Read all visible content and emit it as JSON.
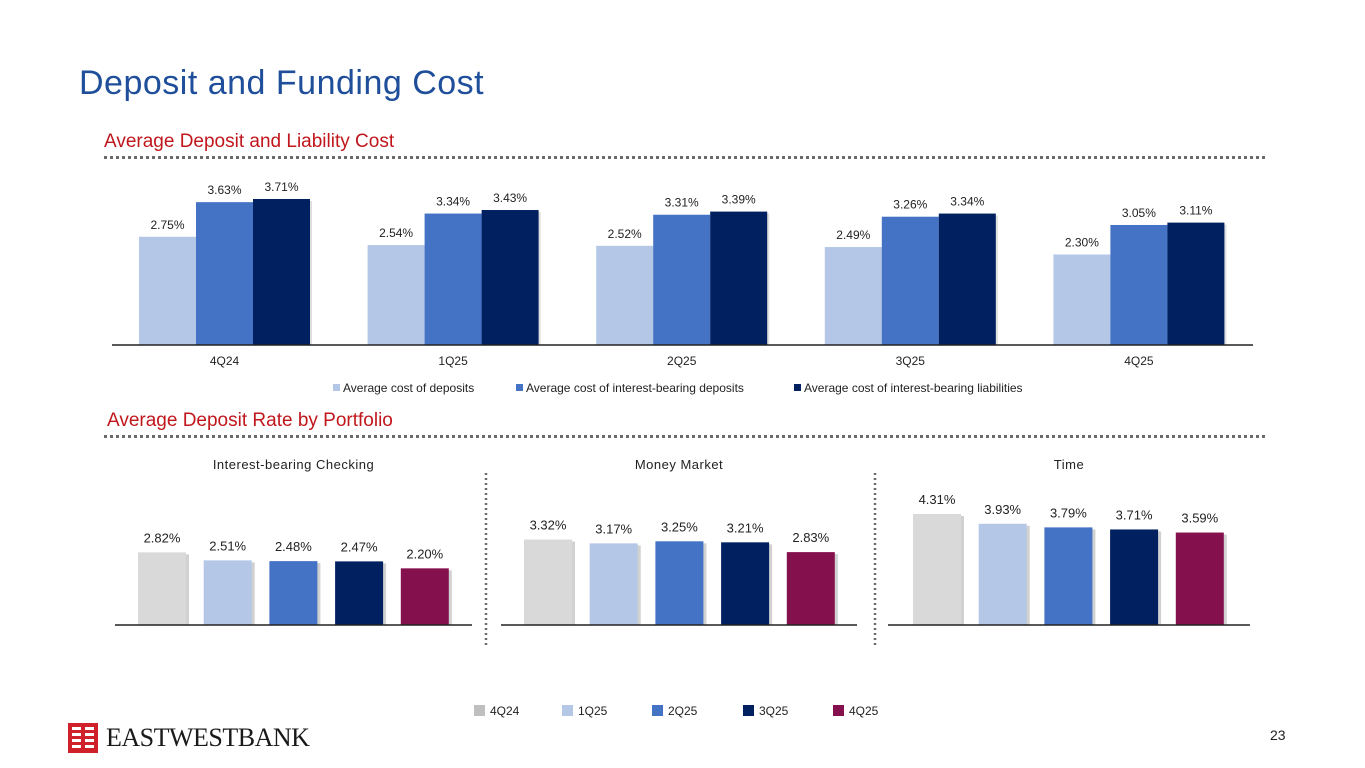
{
  "page": {
    "title": "Deposit and Funding Cost",
    "page_number": "23"
  },
  "section1": {
    "title": "Average Deposit and Liability Cost"
  },
  "section2": {
    "title": "Average Deposit Rate by Portfolio"
  },
  "logo": {
    "text": "EASTWESTBANK",
    "icon": "eastwest-bank-logo-icon"
  },
  "colors": {
    "deposits": "#b4c7e7",
    "ib_deposits": "#4472c4",
    "ib_liabilities": "#002060",
    "q4q24": "#d9d9d9",
    "q1q25": "#b4c7e7",
    "q2q25": "#4472c4",
    "q3q25": "#002060",
    "q4q25": "#85104e",
    "title": "#1f4e9a",
    "section": "#c0171d"
  },
  "chart_data": [
    {
      "type": "bar",
      "title": "Average Deposit and Liability Cost",
      "categories": [
        "4Q24",
        "1Q25",
        "2Q25",
        "3Q25",
        "4Q25"
      ],
      "series": [
        {
          "name": "Average cost of deposits",
          "values": [
            2.75,
            2.54,
            2.52,
            2.49,
            2.3
          ],
          "labels": [
            "2.75%",
            "2.54%",
            "2.52%",
            "2.49%",
            "2.30%"
          ]
        },
        {
          "name": "Average cost of interest-bearing deposits",
          "values": [
            3.63,
            3.34,
            3.31,
            3.26,
            3.05
          ],
          "labels": [
            "3.63%",
            "3.34%",
            "3.31%",
            "3.26%",
            "3.05%"
          ]
        },
        {
          "name": "Average cost of interest-bearing liabilities",
          "values": [
            3.71,
            3.43,
            3.39,
            3.34,
            3.11
          ],
          "labels": [
            "3.71%",
            "3.43%",
            "3.39%",
            "3.34%",
            "3.11%"
          ]
        }
      ],
      "ylim": [
        0,
        5.5
      ],
      "legend": "bottom",
      "grid": false
    },
    {
      "type": "bar",
      "title": "Interest-bearing Checking",
      "categories": [
        "4Q24",
        "1Q25",
        "2Q25",
        "3Q25",
        "4Q25"
      ],
      "values": [
        2.82,
        2.51,
        2.48,
        2.47,
        2.2
      ],
      "labels": [
        "2.82%",
        "2.51%",
        "2.48%",
        "2.47%",
        "2.20%"
      ],
      "ylim": [
        0,
        4.6
      ]
    },
    {
      "type": "bar",
      "title": "Money Market",
      "categories": [
        "4Q24",
        "1Q25",
        "2Q25",
        "3Q25",
        "4Q25"
      ],
      "values": [
        3.32,
        3.17,
        3.25,
        3.21,
        2.83
      ],
      "labels": [
        "3.32%",
        "3.17%",
        "3.25%",
        "3.21%",
        "2.83%"
      ],
      "ylim": [
        0,
        4.6
      ]
    },
    {
      "type": "bar",
      "title": "Time",
      "categories": [
        "4Q24",
        "1Q25",
        "2Q25",
        "3Q25",
        "4Q25"
      ],
      "values": [
        4.31,
        3.93,
        3.79,
        3.71,
        3.59
      ],
      "labels": [
        "4.31%",
        "3.93%",
        "3.79%",
        "3.71%",
        "3.59%"
      ],
      "ylim": [
        0,
        4.6
      ]
    }
  ],
  "small_legend": {
    "entries": [
      "4Q24",
      "1Q25",
      "2Q25",
      "3Q25",
      "4Q25"
    ],
    "placement": "bottom"
  }
}
